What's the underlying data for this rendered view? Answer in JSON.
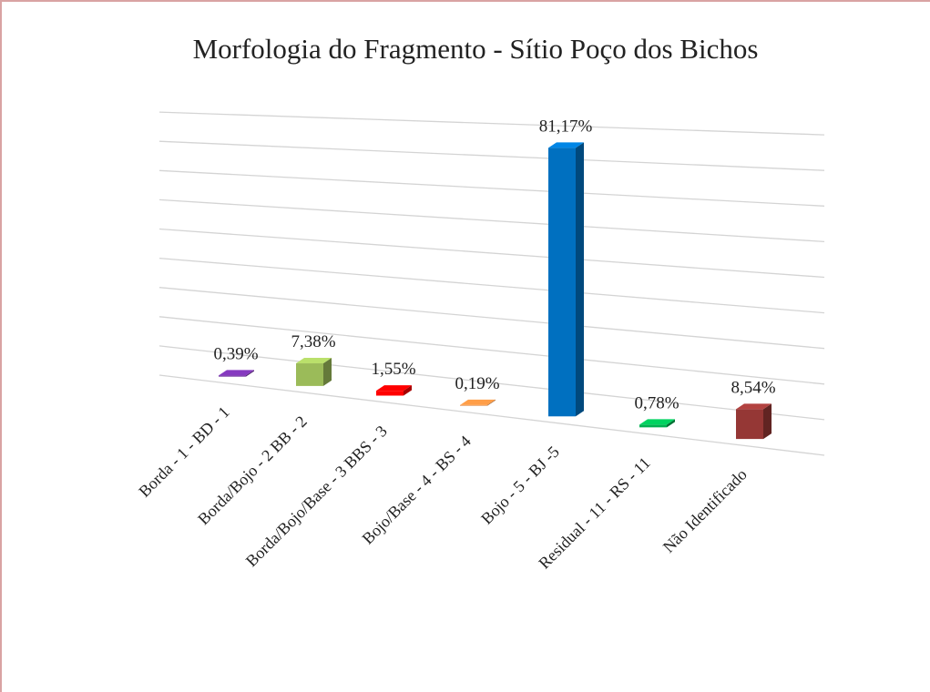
{
  "chart_data": {
    "type": "bar3d",
    "title": "Morfologia do Fragmento - Sítio Poço dos Bichos",
    "categories": [
      "Borda - 1 - BD - 1",
      "Borda/Bojo - 2 BB - 2",
      "Borda/Bojo/Base - 3 BBS - 3",
      "Bojo/Base - 4 - BS - 4",
      "Bojo - 5 - BJ -5",
      "Residual - 11 - RS - 11",
      "Não Identificado"
    ],
    "values": [
      0.39,
      7.38,
      1.55,
      0.19,
      81.17,
      0.78,
      8.54
    ],
    "value_labels": [
      "0,39%",
      "7,38%",
      "1,55%",
      "0,19%",
      "81,17%",
      "0,78%",
      "8,54%"
    ],
    "colors": [
      "#7030a0",
      "#9bbb59",
      "#ff0000",
      "#e0843c",
      "#0070c0",
      "#00b050",
      "#953735"
    ],
    "ylim": [
      0,
      90
    ],
    "yticks": [
      0,
      10,
      20,
      30,
      40,
      50,
      60,
      70,
      80,
      90
    ],
    "grid": true
  }
}
